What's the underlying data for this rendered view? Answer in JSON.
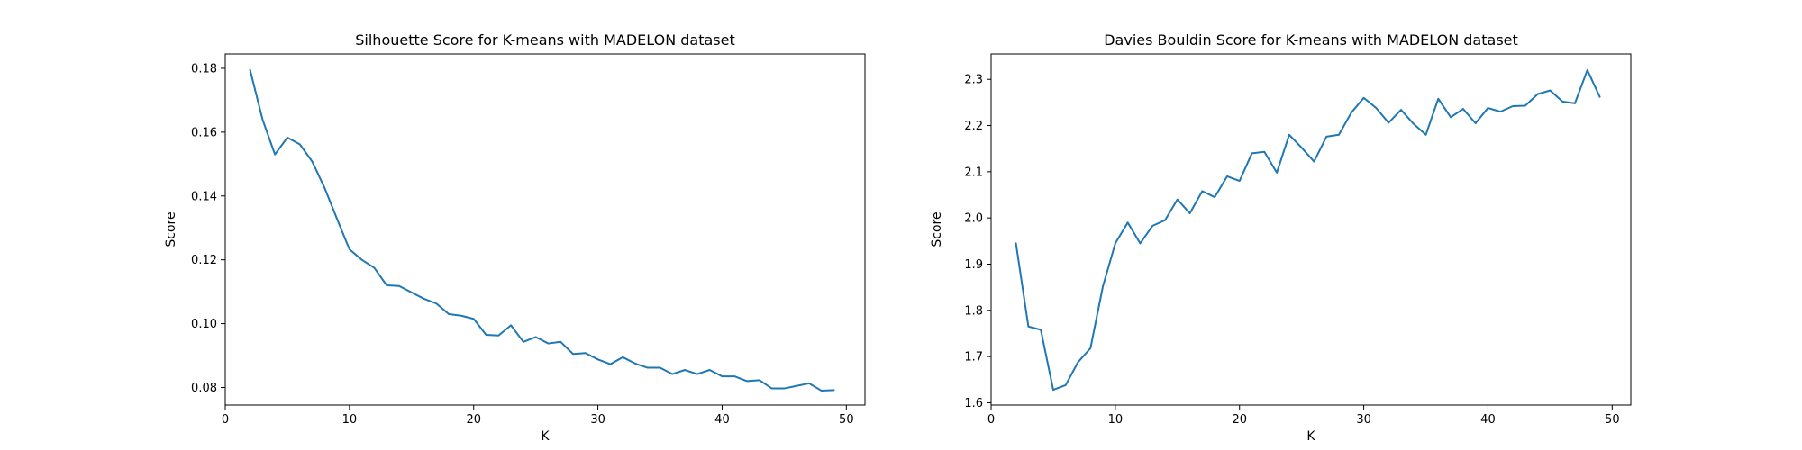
{
  "chart_data": [
    {
      "type": "line",
      "title": "Silhouette Score for K-means with MADELON dataset",
      "xlabel": "K",
      "ylabel": "Score",
      "xlim": [
        0,
        51.5
      ],
      "ylim": [
        0.0745,
        0.1845
      ],
      "xticks": [
        0,
        10,
        20,
        30,
        40,
        50
      ],
      "yticks": [
        0.08,
        0.1,
        0.12,
        0.14,
        0.16,
        0.18
      ],
      "ytick_labels": [
        "0.08",
        "0.10",
        "0.12",
        "0.14",
        "0.16",
        "0.18"
      ],
      "line_color": "#1f77b4",
      "grid": false,
      "x": [
        2,
        3,
        4,
        5,
        6,
        7,
        8,
        9,
        10,
        11,
        12,
        13,
        14,
        15,
        16,
        17,
        18,
        19,
        20,
        21,
        22,
        23,
        24,
        25,
        26,
        27,
        28,
        29,
        30,
        31,
        32,
        33,
        34,
        35,
        36,
        37,
        38,
        39,
        40,
        41,
        42,
        43,
        44,
        45,
        46,
        47,
        48,
        49
      ],
      "y": [
        0.1795,
        0.164,
        0.153,
        0.1583,
        0.1562,
        0.1508,
        0.1425,
        0.1328,
        0.1233,
        0.12,
        0.1175,
        0.112,
        0.1118,
        0.1098,
        0.1078,
        0.1063,
        0.103,
        0.1025,
        0.1015,
        0.0965,
        0.0963,
        0.0995,
        0.0943,
        0.0958,
        0.0938,
        0.0943,
        0.0905,
        0.0908,
        0.0888,
        0.0873,
        0.0895,
        0.0875,
        0.0862,
        0.0862,
        0.0842,
        0.0855,
        0.0842,
        0.0855,
        0.0835,
        0.0835,
        0.082,
        0.0823,
        0.0797,
        0.0797,
        0.0805,
        0.0813,
        0.079,
        0.0792
      ]
    },
    {
      "type": "line",
      "title": "Davies Bouldin Score for K-means with MADELON dataset",
      "xlabel": "K",
      "ylabel": "Score",
      "xlim": [
        0,
        51.5
      ],
      "ylim": [
        1.595,
        2.355
      ],
      "xticks": [
        0,
        10,
        20,
        30,
        40,
        50
      ],
      "yticks": [
        1.6,
        1.7,
        1.8,
        1.9,
        2.0,
        2.1,
        2.2,
        2.3
      ],
      "ytick_labels": [
        "1.6",
        "1.7",
        "1.8",
        "1.9",
        "2.0",
        "2.1",
        "2.2",
        "2.3"
      ],
      "line_color": "#1f77b4",
      "grid": false,
      "x": [
        2,
        3,
        4,
        5,
        6,
        7,
        8,
        9,
        10,
        11,
        12,
        13,
        14,
        15,
        16,
        17,
        18,
        19,
        20,
        21,
        22,
        23,
        24,
        25,
        26,
        27,
        28,
        29,
        30,
        31,
        32,
        33,
        34,
        35,
        36,
        37,
        38,
        39,
        40,
        41,
        42,
        43,
        44,
        45,
        46,
        47,
        48,
        49
      ],
      "y": [
        1.945,
        1.765,
        1.758,
        1.628,
        1.638,
        1.688,
        1.718,
        1.852,
        1.945,
        1.99,
        1.945,
        1.983,
        1.995,
        2.04,
        2.01,
        2.058,
        2.045,
        2.09,
        2.08,
        2.14,
        2.143,
        2.098,
        2.18,
        2.152,
        2.122,
        2.176,
        2.18,
        2.228,
        2.26,
        2.238,
        2.206,
        2.234,
        2.204,
        2.18,
        2.258,
        2.218,
        2.236,
        2.205,
        2.238,
        2.23,
        2.242,
        2.243,
        2.268,
        2.276,
        2.252,
        2.248,
        2.32,
        2.262
      ]
    }
  ]
}
